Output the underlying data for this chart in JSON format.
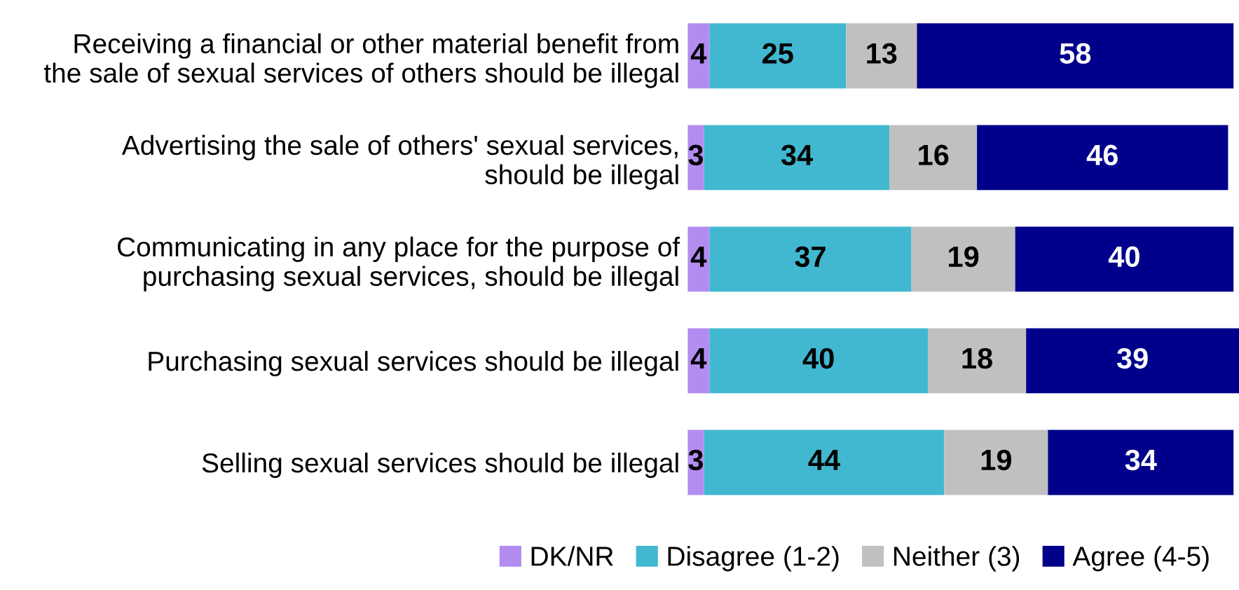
{
  "chart_data": {
    "type": "bar",
    "orientation": "horizontal",
    "stacked": true,
    "data_labels": true,
    "legend": "bottom",
    "grid": false,
    "categories": [
      "Receiving a financial or other material benefit from\nthe sale of sexual services of others should be illegal",
      "Advertising the sale of others' sexual services,\nshould be illegal",
      "Communicating in any place for the purpose of\npurchasing sexual services, should be illegal",
      "Purchasing sexual services should be illegal",
      "Selling sexual services should be illegal"
    ],
    "series": [
      {
        "name": "DK/NR",
        "color": "#b38cf0",
        "values": [
          4,
          3,
          4,
          4,
          3
        ]
      },
      {
        "name": "Disagree (1-2)",
        "color": "#41b8d0",
        "values": [
          25,
          34,
          37,
          40,
          44
        ]
      },
      {
        "name": "Neither (3)",
        "color": "#c0c0c0",
        "values": [
          13,
          16,
          19,
          18,
          19
        ]
      },
      {
        "name": "Agree (4-5)",
        "color": "#00008b",
        "values": [
          58,
          46,
          40,
          39,
          34
        ]
      }
    ]
  }
}
